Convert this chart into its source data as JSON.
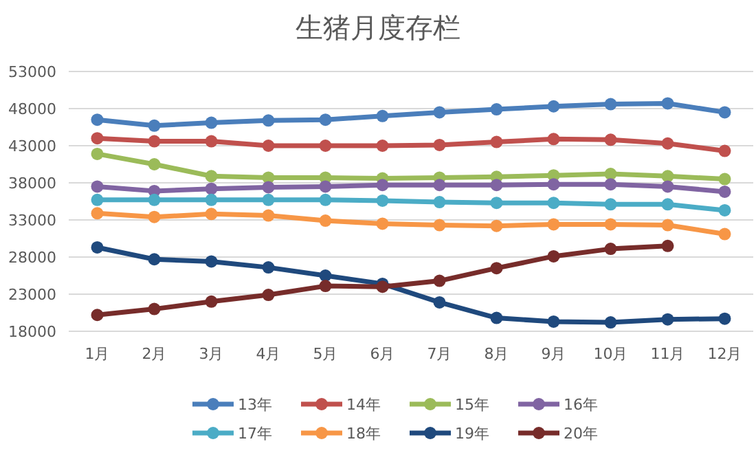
{
  "chart_data": {
    "type": "line",
    "title": "生猪月度存栏",
    "categories": [
      "1月",
      "2月",
      "3月",
      "4月",
      "5月",
      "6月",
      "7月",
      "8月",
      "9月",
      "10月",
      "11月",
      "12月"
    ],
    "ylim": [
      18000,
      53000
    ],
    "yticks": [
      18000,
      23000,
      28000,
      33000,
      38000,
      43000,
      48000,
      53000
    ],
    "grid": "y",
    "legend": "bottom",
    "marker": "circle",
    "line_style": "solid",
    "series": [
      {
        "name": "13年",
        "color": "#4a7ebb",
        "values": [
          46500,
          45700,
          46100,
          46400,
          46500,
          47000,
          47500,
          47900,
          48300,
          48600,
          48700,
          47500
        ]
      },
      {
        "name": "14年",
        "color": "#c0504d",
        "values": [
          44000,
          43600,
          43600,
          43000,
          43000,
          43000,
          43100,
          43500,
          43900,
          43800,
          43300,
          42300
        ]
      },
      {
        "name": "15年",
        "color": "#9bbb59",
        "values": [
          41900,
          40500,
          38900,
          38700,
          38700,
          38600,
          38700,
          38800,
          39000,
          39200,
          38900,
          38500
        ]
      },
      {
        "name": "16年",
        "color": "#8064a2",
        "values": [
          37500,
          36900,
          37200,
          37400,
          37500,
          37700,
          37700,
          37700,
          37800,
          37800,
          37500,
          36800
        ]
      },
      {
        "name": "17年",
        "color": "#4bacc6",
        "values": [
          35700,
          35700,
          35700,
          35700,
          35700,
          35600,
          35400,
          35300,
          35300,
          35100,
          35100,
          34300
        ]
      },
      {
        "name": "18年",
        "color": "#f79646",
        "values": [
          33900,
          33400,
          33800,
          33600,
          32900,
          32500,
          32300,
          32200,
          32400,
          32400,
          32300,
          31100
        ]
      },
      {
        "name": "19年",
        "color": "#1f497d",
        "values": [
          29300,
          27700,
          27400,
          26600,
          25500,
          24400,
          21900,
          19800,
          19300,
          19200,
          19600,
          19700
        ]
      },
      {
        "name": "20年",
        "color": "#772c2a",
        "values": [
          20200,
          21000,
          22000,
          22900,
          24100,
          24000,
          24800,
          26500,
          28100,
          29100,
          29500,
          null
        ]
      }
    ]
  }
}
